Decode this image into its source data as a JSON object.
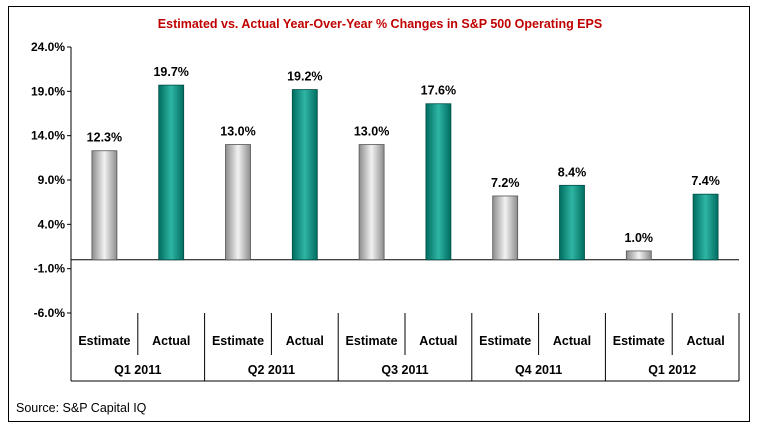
{
  "colors": {
    "estimate_light": "#f2f2f2",
    "estimate_dark": "#8c8c8c",
    "actual_light": "#2fb5a4",
    "actual_dark": "#006d60",
    "title": "#c00000"
  },
  "chart_data": {
    "type": "bar",
    "title": "Estimated vs. Actual Year-Over-Year % Changes in S&P 500 Operating EPS",
    "groups": [
      "Q1 2011",
      "Q2 2011",
      "Q3 2011",
      "Q4 2011",
      "Q1 2012"
    ],
    "sub_categories": [
      "Estimate",
      "Actual"
    ],
    "series": [
      {
        "values": [
          12.3,
          13.0,
          13.0,
          7.2,
          1.0
        ],
        "labels": [
          "12.3%",
          "13.0%",
          "13.0%",
          "7.2%",
          "1.0%"
        ]
      },
      {
        "values": [
          19.7,
          19.2,
          17.6,
          8.4,
          7.4
        ],
        "labels": [
          "19.7%",
          "19.2%",
          "17.6%",
          "8.4%",
          "7.4%"
        ]
      }
    ],
    "y_ticks": [
      24.0,
      19.0,
      14.0,
      9.0,
      4.0,
      -1.0,
      -6.0
    ],
    "y_tick_labels": [
      "24.0%",
      "19.0%",
      "14.0%",
      "9.0%",
      "4.0%",
      "-1.0%",
      "-6.0%"
    ],
    "ylim": [
      -6.0,
      24.0
    ],
    "grid": false,
    "legend": "none"
  },
  "source": "Source: S&P Capital IQ"
}
